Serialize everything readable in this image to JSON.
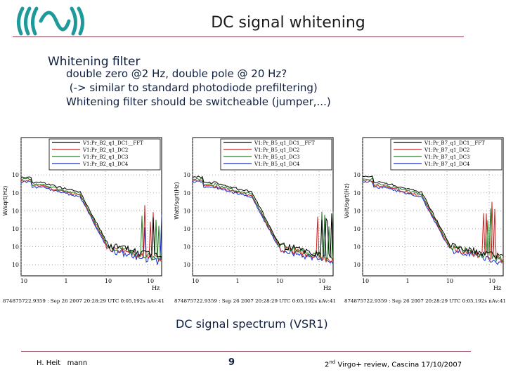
{
  "slide": {
    "title": "DC signal whitening",
    "heading": "Whitening filter",
    "bullets": [
      "double zero @2 Hz, double pole @ 20 Hz?",
      " (-> similar to standard photodiode prefiltering)",
      "Whitening filter should be switcheable (jumper,...)"
    ],
    "caption": "DC signal spectrum (VSR1)"
  },
  "footer": {
    "author": "H. Heit   mann",
    "page": "9",
    "event_sup": "nd",
    "event_pre": "2",
    "event_post": " Virgo+ review, Cascina 17/10/2007"
  },
  "plots": [
    {
      "ylabel": "W/sqrt(Hz)",
      "legend": [
        "V1:Pr_B2_q1_DC1__FFT",
        "V1:Pr_B2_q1_DC2",
        "V1:Pr_B2_q1_DC3",
        "V1:Pr_B2_q1_DC4"
      ],
      "xunit": "Hz",
      "timestamp": "874875722.9359 : Sep 26 2007 20:28:29 UTC 0:05,192s nAv:41"
    },
    {
      "ylabel": "Watt/sqrt(Hz)",
      "legend": [
        "V1:Pr_B5_q1_DC1__FFT",
        "V1:Pr_B5_q1_DC2",
        "V1:Pr_B5_q1_DC3",
        "V1:Pr_B5_q1_DC4"
      ],
      "xunit": "Hz",
      "timestamp": "874875722.9359 : Sep 26 2007 20:28:29 UTC 0:05,192s nAv:41"
    },
    {
      "ylabel": "Volt/sqrt(Hz)",
      "legend": [
        "V1:Pr_B7_q1_DC1__FFT",
        "V1:Pr_B7_q1_DC2",
        "V1:Pr_B7_q1_DC3",
        "V1:Pr_B7_q1_DC4"
      ],
      "xunit": "Hz",
      "timestamp": "874875722.9359 : Sep 26 2007 20:28:29 UTC 0:05,192s nAv:41"
    }
  ],
  "axes": {
    "x_ticks": [
      "10",
      "1",
      "10",
      "10"
    ],
    "y_ticks": [
      "1",
      "10",
      "10",
      "10",
      "10",
      "10",
      "10"
    ]
  },
  "colors": {
    "series": [
      "#000000",
      "#d02020",
      "#208020",
      "#1030d0"
    ],
    "accent": "#8a3a4a",
    "text": "#102040"
  }
}
